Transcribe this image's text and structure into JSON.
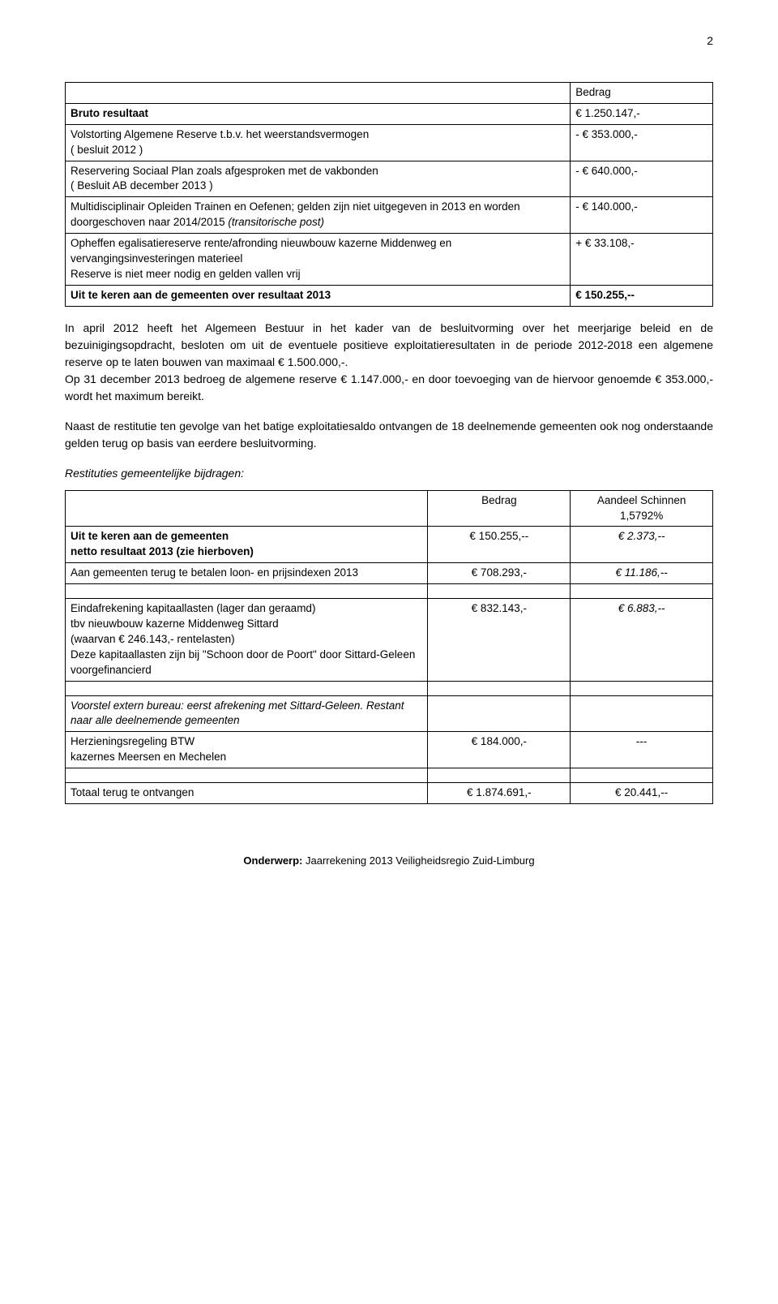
{
  "page_number": "2",
  "table1": {
    "header_label": "Bedrag",
    "rows": [
      {
        "label": "Bruto resultaat",
        "value": "€ 1.250.147,-",
        "label_bold": true
      },
      {
        "label": "Volstorting Algemene Reserve t.b.v. het weerstandsvermogen\n( besluit 2012 )",
        "value": "- €   353.000,-"
      },
      {
        "label": "Reservering Sociaal Plan zoals afgesproken met de vakbonden\n( Besluit AB december 2013 )",
        "value": "- €   640.000,-"
      },
      {
        "label": "Multidisciplinair Opleiden Trainen en Oefenen; gelden zijn niet uitgegeven in 2013 en worden doorgeschoven naar 2014/2015 (transitorische post)",
        "value": "- €   140.000,-",
        "italic_tail": "(transitorische post)"
      },
      {
        "label": "Opheffen egalisatiereserve rente/afronding nieuwbouw kazerne Middenweg en vervangingsinvesteringen materieel\nReserve is niet meer nodig en gelden vallen vrij",
        "value": "+ €    33.108,-"
      },
      {
        "label": "Uit te keren aan de gemeenten over resultaat 2013",
        "value": "€ 150.255,--",
        "label_bold": true,
        "value_bold": true
      }
    ]
  },
  "para1": "In april 2012 heeft het Algemeen Bestuur in het kader van de besluitvorming over het meerjarige beleid en de bezuinigingsopdracht, besloten om uit de eventuele positieve exploitatieresultaten in de periode 2012-2018 een algemene reserve op te laten bouwen van maximaal € 1.500.000,-.",
  "para1b": "Op 31 december 2013 bedroeg de algemene reserve € 1.147.000,- en door toevoeging van de hiervoor genoemde € 353.000,- wordt het maximum bereikt.",
  "para2": "Naast de restitutie ten gevolge van het batige exploitatiesaldo ontvangen de 18 deelnemende gemeenten ook nog onderstaande gelden terug op basis van eerdere besluitvorming.",
  "subhead": "Restituties gemeentelijke bijdragen:",
  "table2": {
    "h_bedrag": "Bedrag",
    "h_aandeel": "Aandeel Schinnen",
    "h_pct": "1,5792%",
    "rows": [
      {
        "c1_a": "Uit te keren aan de gemeenten",
        "c1_b": "netto resultaat 2013 (zie hierboven)",
        "c1_bold": true,
        "c2": "€ 150.255,--",
        "c3": "€ 2.373,--",
        "c3_italic": true
      },
      {
        "c1_a": "Aan gemeenten terug te betalen loon- en prijsindexen 2013",
        "c2": "€ 708.293,-",
        "c3": "€ 11.186,--",
        "c3_italic": true
      },
      {
        "spacer": true
      },
      {
        "c1_multi": true,
        "c1_l1": "Eindafrekening kapitaallasten (lager dan geraamd)",
        "c1_l2": "tbv nieuwbouw kazerne Middenweg Sittard",
        "c1_l3": "(waarvan € 246.143,- rentelasten)",
        "c1_l4": "Deze kapitaallasten zijn bij \"Schoon door de Poort\" door Sittard-Geleen voorgefinancierd",
        "c2": "€ 832.143,-",
        "c3": "€ 6.883,--",
        "c3_italic": true
      },
      {
        "spacer": true
      },
      {
        "c1_voorstel": true,
        "c1_v": "Voorstel extern bureau: eerst afrekening met Sittard-Geleen. Restant naar alle deelnemende gemeenten"
      },
      {
        "c1_a": "Herzieningsregeling BTW",
        "c1_b": "kazernes Meersen en Mechelen",
        "c2": "€ 184.000,-",
        "c3": "---",
        "c3_center": true
      },
      {
        "spacer": true
      },
      {
        "c1_a": "Totaal terug te ontvangen",
        "c2": "€ 1.874.691,-",
        "c3": "€ 20.441,--"
      }
    ]
  },
  "footer_label": "Onderwerp:",
  "footer_text": " Jaarrekening 2013 Veiligheidsregio Zuid-Limburg"
}
